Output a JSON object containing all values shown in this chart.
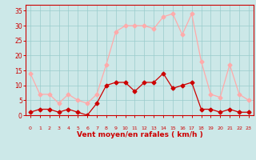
{
  "hours": [
    0,
    1,
    2,
    3,
    4,
    5,
    6,
    7,
    8,
    9,
    10,
    11,
    12,
    13,
    14,
    15,
    16,
    17,
    18,
    19,
    20,
    21,
    22,
    23
  ],
  "wind_avg": [
    1,
    2,
    2,
    1,
    2,
    1,
    0,
    4,
    10,
    11,
    11,
    8,
    11,
    11,
    14,
    9,
    10,
    11,
    2,
    2,
    1,
    2,
    1,
    1
  ],
  "wind_gust": [
    14,
    7,
    7,
    4,
    7,
    5,
    4,
    7,
    17,
    28,
    30,
    30,
    30,
    29,
    33,
    34,
    27,
    34,
    18,
    7,
    6,
    17,
    7,
    5
  ],
  "color_avg": "#cc0000",
  "color_gust": "#ffaaaa",
  "bg_color": "#cce8e8",
  "grid_color": "#99cccc",
  "xlabel": "Vent moyen/en rafales ( km/h )",
  "xlabel_color": "#cc0000",
  "tick_color": "#cc0000",
  "spine_color": "#cc0000",
  "ylim": [
    0,
    37
  ],
  "yticks": [
    0,
    5,
    10,
    15,
    20,
    25,
    30,
    35
  ],
  "xlim": [
    -0.5,
    23.5
  ],
  "marker": "D",
  "markersize": 2.5,
  "linewidth": 0.9
}
